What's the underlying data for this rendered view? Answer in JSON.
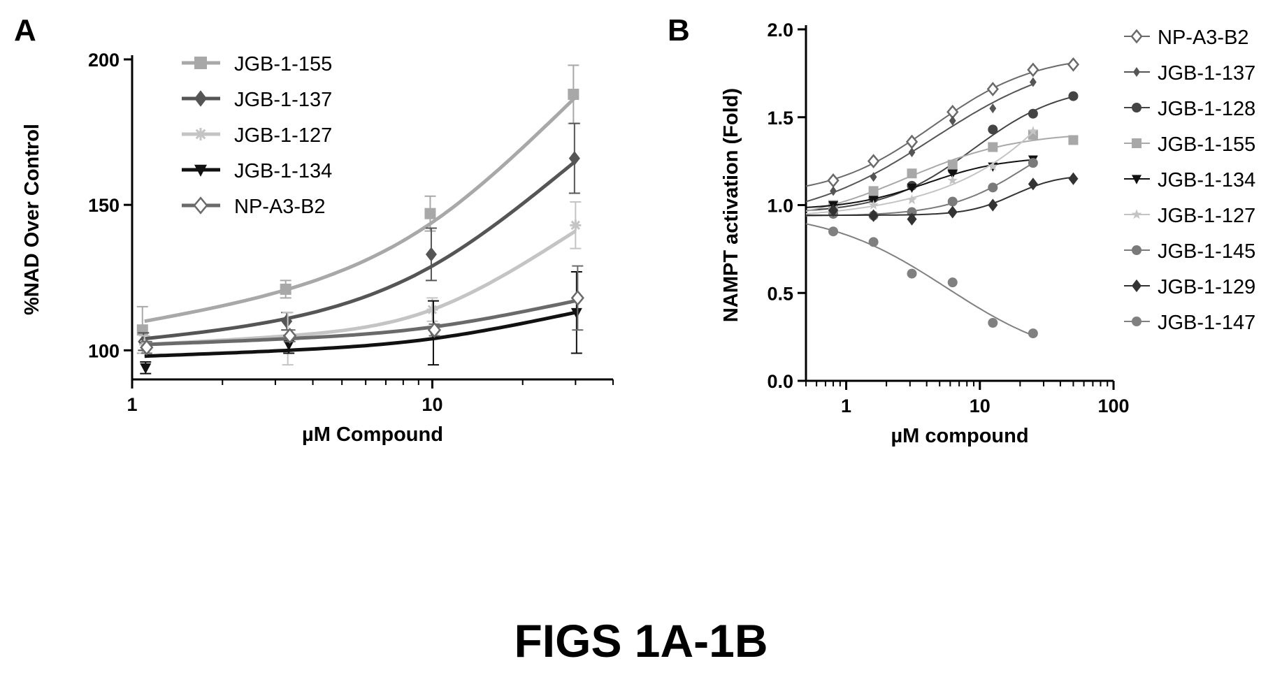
{
  "figure_caption": "FIGS 1A-1B",
  "colors": {
    "ink": "#000000",
    "JGB-1-155": "#a8a8a8",
    "JGB-1-137": "#555555",
    "JGB-1-127": "#c4c4c4",
    "JGB-1-134": "#111111",
    "NP-A3-B2": "#6a6a6a",
    "JGB-1-128": "#444444",
    "JGB-1-145": "#7a7a7a",
    "JGB-1-129": "#333333",
    "JGB-1-147": "#808080"
  },
  "chart_data": [
    {
      "panel": "A",
      "type": "line",
      "xscale": "log",
      "xlabel": "µM Compound",
      "ylabel": "%NAD Over Control",
      "xlim": [
        1,
        40
      ],
      "ylim": [
        90,
        200
      ],
      "x_ticks": [
        1,
        10
      ],
      "y_ticks": [
        100,
        150,
        200
      ],
      "grid": false,
      "legend_position": "top-center",
      "x": [
        1.1,
        3.3,
        10,
        30
      ],
      "series": [
        {
          "name": "JGB-1-155",
          "marker": "square",
          "values": [
            107,
            121,
            147,
            188
          ],
          "error": [
            8,
            3,
            6,
            10
          ],
          "fit": [
            110,
            121,
            144,
            187
          ]
        },
        {
          "name": "JGB-1-137",
          "marker": "diamond",
          "values": [
            103,
            110,
            133,
            166
          ],
          "error": [
            3,
            3,
            9,
            12
          ],
          "fit": [
            104,
            111,
            129,
            165
          ]
        },
        {
          "name": "JGB-1-127",
          "marker": "cross",
          "values": [
            102,
            104,
            114,
            143
          ],
          "error": [
            3,
            9,
            4,
            8
          ],
          "fit": [
            102,
            105,
            114,
            141
          ]
        },
        {
          "name": "JGB-1-134",
          "marker": "triangle-down",
          "values": [
            94,
            102,
            106,
            113
          ],
          "error": [
            2,
            3,
            11,
            14
          ],
          "fit": [
            98,
            100,
            104,
            113
          ]
        },
        {
          "name": "NP-A3-B2",
          "marker": "diamond-open",
          "values": [
            101,
            105,
            107,
            118
          ],
          "error": [
            2,
            2,
            2,
            11
          ],
          "fit": [
            102,
            104,
            108,
            117
          ]
        }
      ]
    },
    {
      "panel": "B",
      "type": "line",
      "xscale": "log",
      "xlabel": "µM compound",
      "ylabel": "NAMPT activation (Fold)",
      "xlim": [
        0.5,
        100
      ],
      "ylim": [
        0.0,
        2.0
      ],
      "x_ticks": [
        1,
        10,
        100
      ],
      "y_ticks": [
        0.0,
        0.5,
        1.0,
        1.5,
        2.0
      ],
      "grid": false,
      "legend_position": "right",
      "series": [
        {
          "name": "NP-A3-B2",
          "marker": "diamond-open",
          "x": [
            0.8,
            1.6,
            3.1,
            6.25,
            12.5,
            25,
            50
          ],
          "values": [
            1.14,
            1.25,
            1.36,
            1.53,
            1.66,
            1.77,
            1.8
          ],
          "fit_range": [
            0.5,
            50
          ]
        },
        {
          "name": "JGB-1-137",
          "marker": "diamond-small",
          "x": [
            0.8,
            1.6,
            3.1,
            6.25,
            12.5,
            25
          ],
          "values": [
            1.08,
            1.16,
            1.3,
            1.48,
            1.55,
            1.7
          ],
          "fit_range": [
            0.5,
            25
          ]
        },
        {
          "name": "JGB-1-128",
          "marker": "circle",
          "x": [
            0.8,
            1.6,
            3.1,
            6.25,
            12.5,
            25,
            50
          ],
          "values": [
            0.97,
            1.04,
            1.11,
            1.2,
            1.43,
            1.52,
            1.62
          ],
          "fit_range": [
            0.5,
            50
          ]
        },
        {
          "name": "JGB-1-155",
          "marker": "square",
          "x": [
            0.8,
            1.6,
            3.1,
            6.25,
            12.5,
            25,
            50
          ],
          "values": [
            1.0,
            1.08,
            1.18,
            1.23,
            1.33,
            1.4,
            1.37
          ],
          "fit_range": [
            0.5,
            50
          ]
        },
        {
          "name": "JGB-1-134",
          "marker": "triangle-down",
          "x": [
            0.8,
            1.6,
            3.1,
            6.25,
            12.5,
            25
          ],
          "values": [
            1.0,
            1.03,
            1.1,
            1.18,
            1.22,
            1.26
          ],
          "fit_range": [
            0.5,
            25
          ]
        },
        {
          "name": "JGB-1-127",
          "marker": "star",
          "x": [
            0.8,
            1.6,
            3.1,
            6.25,
            12.5,
            25
          ],
          "values": [
            0.96,
            1.0,
            1.03,
            1.14,
            1.22,
            1.42
          ],
          "fit_range": [
            0.5,
            25
          ]
        },
        {
          "name": "JGB-1-145",
          "marker": "circle",
          "x": [
            0.8,
            1.6,
            3.1,
            6.25,
            12.5,
            25
          ],
          "values": [
            0.95,
            0.94,
            0.96,
            1.02,
            1.1,
            1.24
          ],
          "fit_range": [
            0.5,
            25
          ]
        },
        {
          "name": "JGB-1-129",
          "marker": "diamond",
          "x": [
            0.8,
            1.6,
            3.1,
            6.25,
            12.5,
            25,
            50
          ],
          "values": [
            0.97,
            0.94,
            0.92,
            0.96,
            1.0,
            1.12,
            1.15
          ],
          "fit_range": [
            0.5,
            50
          ]
        },
        {
          "name": "JGB-1-147",
          "marker": "circle",
          "x": [
            0.8,
            1.6,
            3.1,
            6.25,
            12.5,
            25
          ],
          "values": [
            0.85,
            0.79,
            0.61,
            0.56,
            0.33,
            0.27
          ],
          "fit_range": [
            0.5,
            25
          ]
        }
      ]
    }
  ]
}
